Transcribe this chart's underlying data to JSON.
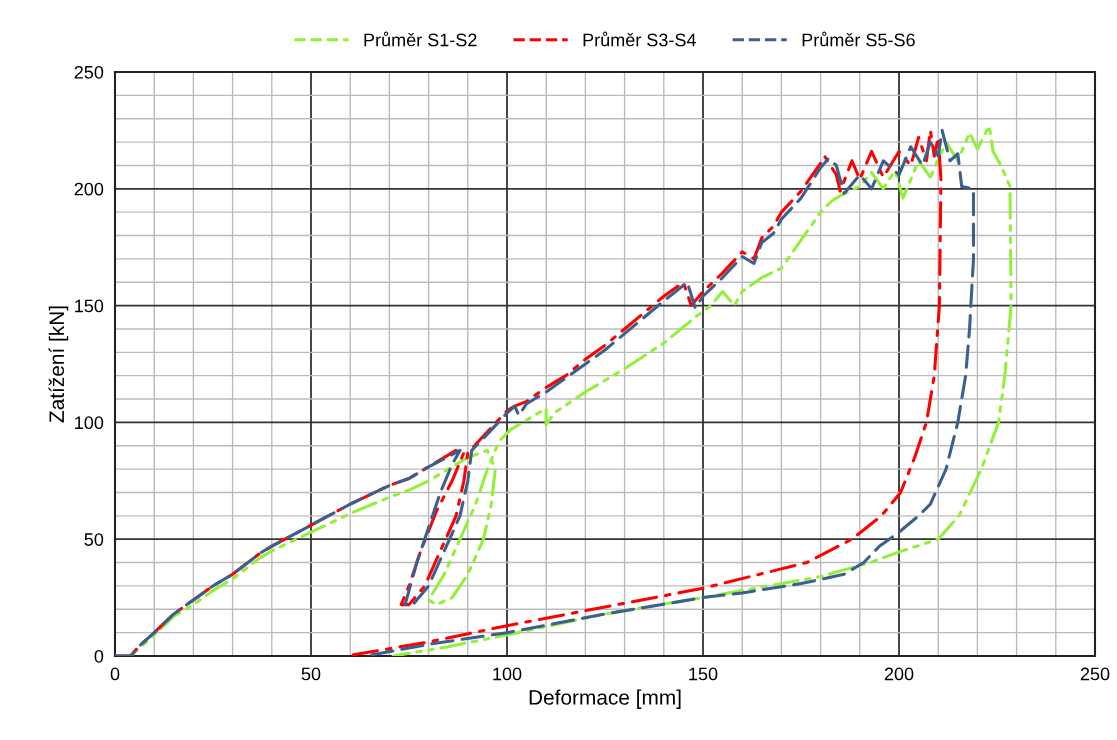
{
  "chart_data": {
    "type": "line",
    "xlabel": "Deformace [mm]",
    "ylabel": "Zatížení [kN]",
    "xlim": [
      0,
      250
    ],
    "ylim": [
      0,
      250
    ],
    "xticks": [
      0,
      {
        "value": 10,
        "label": null
      },
      {
        "value": 20,
        "label": null
      },
      {
        "value": 30,
        "label": null
      },
      {
        "value": 40,
        "label": null
      },
      50,
      {
        "value": 60,
        "label": null
      },
      {
        "value": 70,
        "label": null
      },
      {
        "value": 80,
        "label": null
      },
      {
        "value": 90,
        "label": null
      },
      100,
      {
        "value": 110,
        "label": null
      },
      {
        "value": 120,
        "label": null
      },
      {
        "value": 130,
        "label": null
      },
      {
        "value": 140,
        "label": null
      },
      150,
      {
        "value": 160,
        "label": null
      },
      {
        "value": 170,
        "label": null
      },
      {
        "value": 180,
        "label": null
      },
      {
        "value": 190,
        "label": null
      },
      200,
      {
        "value": 210,
        "label": null
      },
      {
        "value": 220,
        "label": null
      },
      {
        "value": 230,
        "label": null
      },
      {
        "value": 240,
        "label": null
      },
      250
    ],
    "yticks": [
      0,
      {
        "value": 10,
        "label": null
      },
      {
        "value": 20,
        "label": null
      },
      {
        "value": 30,
        "label": null
      },
      {
        "value": 40,
        "label": null
      },
      50,
      {
        "value": 60,
        "label": null
      },
      {
        "value": 70,
        "label": null
      },
      {
        "value": 80,
        "label": null
      },
      {
        "value": 90,
        "label": null
      },
      100,
      {
        "value": 110,
        "label": null
      },
      {
        "value": 120,
        "label": null
      },
      {
        "value": 130,
        "label": null
      },
      {
        "value": 140,
        "label": null
      },
      150,
      {
        "value": 160,
        "label": null
      },
      {
        "value": 170,
        "label": null
      },
      {
        "value": 180,
        "label": null
      },
      {
        "value": 190,
        "label": null
      },
      200,
      {
        "value": 210,
        "label": null
      },
      {
        "value": 220,
        "label": null
      },
      {
        "value": 230,
        "label": null
      },
      {
        "value": 240,
        "label": null
      },
      250
    ],
    "grid": true,
    "legend": "top",
    "series": [
      {
        "name": "Průměr S1-S2",
        "color": "#92f03a",
        "line_style": "dashdotdot",
        "x": [
          0,
          4,
          6,
          10,
          15,
          20,
          25,
          30,
          37,
          40,
          50,
          60,
          70,
          75,
          80,
          86,
          90,
          95,
          97,
          96,
          94,
          90,
          86,
          82,
          80,
          84,
          88,
          92,
          95,
          97,
          98,
          101,
          105,
          110,
          110,
          112,
          120,
          130,
          140,
          148,
          152,
          155,
          158,
          160,
          165,
          170,
          175,
          180,
          183,
          186,
          190,
          193,
          196,
          199,
          201,
          205,
          208,
          212,
          215,
          218,
          220,
          223,
          224,
          226,
          228.3,
          228.6,
          227,
          225.4,
          221,
          215.3,
          210,
          200.8,
          192.6,
          180,
          150,
          125,
          100,
          85,
          71
        ],
        "values": [
          0,
          0,
          3,
          9,
          17,
          22,
          28,
          33,
          42,
          45,
          53,
          61,
          68,
          71,
          75,
          81,
          85,
          88,
          80,
          65,
          50,
          35,
          25,
          22,
          24,
          35,
          50,
          65,
          80,
          88,
          92,
          97,
          101,
          106,
          99,
          104,
          113,
          123,
          134,
          145,
          150,
          156,
          150,
          156,
          162,
          166,
          178,
          190,
          195,
          198,
          201,
          207,
          200,
          208,
          196,
          212,
          205,
          220,
          212,
          224,
          217,
          227,
          216,
          210,
          201,
          150,
          120,
          100,
          80,
          60,
          50,
          45,
          40,
          34,
          25,
          18,
          9,
          4,
          0
        ]
      },
      {
        "name": "Průměr S3-S4",
        "color": "#ff0000",
        "line_style": "dashdot",
        "x": [
          0,
          4,
          6,
          10,
          15,
          20,
          25,
          30,
          37,
          40,
          50,
          60,
          70,
          75,
          80,
          87,
          89,
          86,
          82,
          78,
          75,
          73,
          75,
          79,
          83,
          87,
          89,
          90,
          95,
          100,
          102,
          105,
          110,
          115,
          120,
          125,
          130,
          135,
          140,
          145,
          147,
          150,
          155,
          160,
          163,
          165,
          168,
          170,
          175,
          180,
          181,
          184,
          185,
          188,
          190,
          193,
          196,
          200,
          203,
          205,
          207,
          208,
          209,
          210,
          210.7,
          210.3,
          209,
          207,
          204,
          200.4,
          195.5,
          188,
          176.5,
          150,
          125,
          100,
          80,
          59
        ],
        "values": [
          0,
          0,
          4,
          10,
          18,
          24,
          30,
          35,
          44,
          47,
          56,
          65,
          73,
          76,
          81,
          88,
          87,
          75,
          62,
          45,
          30,
          22,
          22,
          30,
          45,
          60,
          75,
          87,
          96,
          105,
          107,
          109,
          115,
          120,
          127,
          133,
          140,
          147,
          154,
          160,
          150,
          156,
          164,
          173,
          170,
          179,
          184,
          190,
          199,
          211,
          214,
          206,
          199,
          212,
          204,
          216,
          205,
          216,
          210,
          222,
          212,
          225,
          214,
          222,
          204,
          150,
          120,
          100,
          85,
          70,
          60,
          50,
          40,
          29,
          21,
          13,
          6,
          0
        ]
      },
      {
        "name": "Průměr S5-S6",
        "color": "#3b5f8f",
        "line_style": "dashed",
        "x": [
          0,
          4,
          6,
          10,
          15,
          20,
          25,
          30,
          37,
          40,
          50,
          60,
          70,
          75,
          80,
          88,
          86,
          83,
          80,
          77,
          75,
          74,
          76,
          80,
          84,
          88,
          90,
          91,
          95,
          100,
          102,
          103,
          105,
          110,
          115,
          120,
          125,
          130,
          135,
          140,
          146,
          148,
          150,
          155,
          160,
          163,
          165,
          168,
          170,
          175,
          180,
          182,
          184,
          186,
          190,
          193,
          196,
          200,
          203,
          206,
          208,
          210,
          211,
          213,
          215,
          216,
          219,
          219,
          218,
          217,
          215,
          212,
          208,
          205,
          200,
          195,
          191,
          186,
          175,
          160,
          150,
          125,
          100,
          80,
          64
        ],
        "values": [
          0,
          0,
          4,
          10,
          18,
          24,
          30,
          35,
          44,
          47,
          56,
          65,
          73,
          76,
          81,
          88,
          82,
          70,
          55,
          40,
          28,
          22,
          22,
          30,
          45,
          60,
          75,
          88,
          95,
          104,
          107,
          103,
          108,
          113,
          119,
          125,
          131,
          138,
          145,
          152,
          160,
          149,
          154,
          162,
          171,
          168,
          177,
          181,
          187,
          196,
          209,
          213,
          210,
          198,
          206,
          200,
          212,
          206,
          218,
          210,
          220,
          214,
          225,
          212,
          215,
          201,
          200,
          170,
          140,
          120,
          100,
          80,
          65,
          60,
          53,
          47,
          40,
          35,
          31,
          27,
          25,
          18,
          10,
          5,
          0
        ]
      }
    ]
  }
}
